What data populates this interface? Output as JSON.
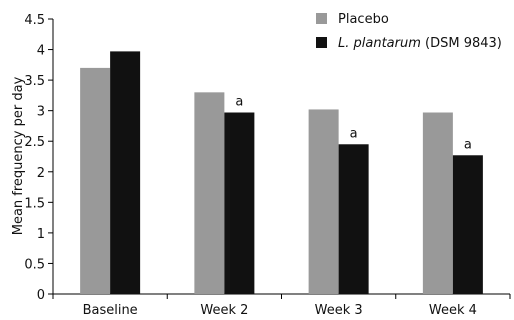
{
  "chart_data": {
    "type": "bar",
    "title": "",
    "xlabel": "",
    "ylabel": "Mean frequency per day",
    "categories": [
      "Baseline",
      "Week 2",
      "Week 3",
      "Week 4"
    ],
    "ylim": [
      0,
      4.5
    ],
    "yticks": [
      "0",
      "0.5",
      "1",
      "1.5",
      "2",
      "2.5",
      "3",
      "3.5",
      "4",
      "4.5"
    ],
    "grid": false,
    "legend_position": "top-right",
    "series": [
      {
        "name": "Placebo",
        "color": "#999999",
        "values": [
          3.7,
          3.3,
          3.02,
          2.97
        ]
      },
      {
        "name_italic": "L. plantarum",
        "name_suffix": " (DSM 9843)",
        "color": "#111111",
        "values": [
          3.97,
          2.97,
          2.45,
          2.27
        ]
      }
    ],
    "annotations": [
      {
        "category": "Week 2",
        "series": 1,
        "text": "a"
      },
      {
        "category": "Week 3",
        "series": 1,
        "text": "a"
      },
      {
        "category": "Week 4",
        "series": 1,
        "text": "a"
      }
    ]
  }
}
